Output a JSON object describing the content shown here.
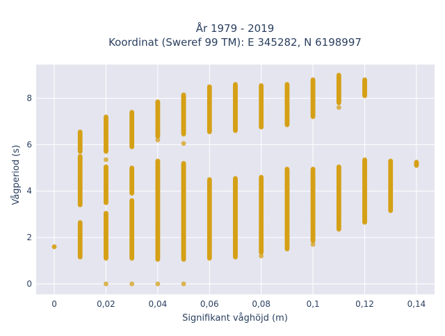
{
  "chart_data": {
    "type": "scatter",
    "title_line1": "År 1979 - 2019",
    "title_line2": "Koordinat (Sweref 99 TM): E 345282, N 6198997",
    "xlabel": "Signifikant våghöjd (m)",
    "ylabel": "Vågperiod (s)",
    "xlim": [
      -0.007,
      0.147
    ],
    "ylim": [
      -0.45,
      9.45
    ],
    "x_ticks": [
      0,
      0.02,
      0.04,
      0.06,
      0.08,
      0.1,
      0.12,
      0.14
    ],
    "x_tick_labels": [
      "0",
      "0,02",
      "0,04",
      "0,06",
      "0,08",
      "0,1",
      "0,12",
      "0,14"
    ],
    "y_ticks": [
      0,
      2,
      4,
      6,
      8
    ],
    "y_tick_labels": [
      "0",
      "2",
      "4",
      "6",
      "8"
    ],
    "grid": true,
    "marker_color": "#D4A017",
    "background_color": "#E5E5F0",
    "series": [
      {
        "segments": [
          {
            "x": 0.0,
            "y0": 1.6,
            "y1": 1.6
          },
          {
            "x": 0.01,
            "y0": 1.15,
            "y1": 2.65
          },
          {
            "x": 0.01,
            "y0": 3.4,
            "y1": 5.5
          },
          {
            "x": 0.01,
            "y0": 5.7,
            "y1": 6.55
          },
          {
            "x": 0.02,
            "y0": 1.1,
            "y1": 3.05
          },
          {
            "x": 0.02,
            "y0": 3.5,
            "y1": 5.05
          },
          {
            "x": 0.02,
            "y0": 5.7,
            "y1": 7.2
          },
          {
            "x": 0.03,
            "y0": 1.1,
            "y1": 3.6
          },
          {
            "x": 0.03,
            "y0": 3.9,
            "y1": 5.0
          },
          {
            "x": 0.03,
            "y0": 5.9,
            "y1": 7.4
          },
          {
            "x": 0.04,
            "y0": 1.05,
            "y1": 4.0
          },
          {
            "x": 0.04,
            "y0": 4.0,
            "y1": 5.3
          },
          {
            "x": 0.04,
            "y0": 6.35,
            "y1": 7.85
          },
          {
            "x": 0.05,
            "y0": 1.05,
            "y1": 4.2
          },
          {
            "x": 0.05,
            "y0": 4.2,
            "y1": 5.2
          },
          {
            "x": 0.05,
            "y0": 6.45,
            "y1": 8.15
          },
          {
            "x": 0.06,
            "y0": 1.1,
            "y1": 4.5
          },
          {
            "x": 0.06,
            "y0": 6.55,
            "y1": 8.5
          },
          {
            "x": 0.07,
            "y0": 1.15,
            "y1": 4.55
          },
          {
            "x": 0.07,
            "y0": 6.6,
            "y1": 8.6
          },
          {
            "x": 0.08,
            "y0": 1.35,
            "y1": 4.6
          },
          {
            "x": 0.08,
            "y0": 6.75,
            "y1": 8.55
          },
          {
            "x": 0.09,
            "y0": 1.5,
            "y1": 4.95
          },
          {
            "x": 0.09,
            "y0": 6.85,
            "y1": 8.6
          },
          {
            "x": 0.1,
            "y0": 1.85,
            "y1": 4.95
          },
          {
            "x": 0.1,
            "y0": 7.2,
            "y1": 8.8
          },
          {
            "x": 0.11,
            "y0": 2.35,
            "y1": 5.05
          },
          {
            "x": 0.11,
            "y0": 7.8,
            "y1": 9.0
          },
          {
            "x": 0.12,
            "y0": 2.65,
            "y1": 5.35
          },
          {
            "x": 0.12,
            "y0": 8.1,
            "y1": 8.8
          },
          {
            "x": 0.13,
            "y0": 3.15,
            "y1": 5.3
          },
          {
            "x": 0.14,
            "y0": 5.1,
            "y1": 5.25
          }
        ],
        "outliers": [
          [
            0.02,
            0.0
          ],
          [
            0.03,
            0.0
          ],
          [
            0.04,
            0.0
          ],
          [
            0.05,
            0.0
          ],
          [
            0.02,
            5.35
          ],
          [
            0.02,
            3.5
          ],
          [
            0.04,
            6.2
          ],
          [
            0.05,
            6.05
          ],
          [
            0.1,
            1.7
          ],
          [
            0.11,
            7.6
          ],
          [
            0.08,
            1.2
          ],
          [
            0.12,
            8.35
          ]
        ]
      }
    ]
  }
}
